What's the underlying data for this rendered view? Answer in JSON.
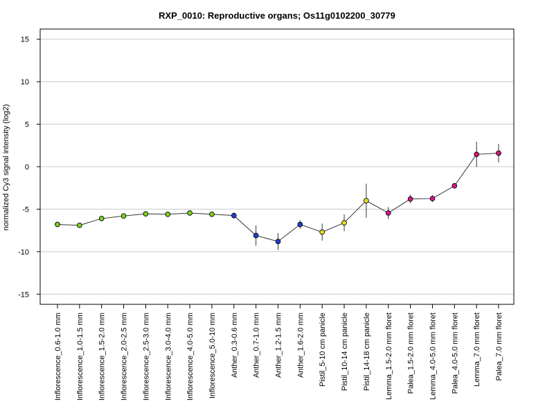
{
  "chart_data": {
    "type": "line",
    "title": "RXP_0010: Reproductive organs; Os11g0102200_30779",
    "ylabel": "normalized Cy3 signal intensity (log2)",
    "xlabel": "",
    "ylim": [
      -16.2,
      16.2
    ],
    "yticks": [
      -15,
      -10,
      -5,
      0,
      5,
      10,
      15
    ],
    "grid": true,
    "categories": [
      "Inflorescence_0.6-1.0 mm",
      "Inflorescence_1.0-1.5 mm",
      "Inflorescence_1.5-2.0 mm",
      "Inflorescence_2.0-2.5 mm",
      "Inflorescence_2.5-3.0 mm",
      "Inflorescence_3.0-4.0 mm",
      "Inflorescence_4.0-5.0 mm",
      "Inflorescence_5.0-10 mm",
      "Anther_0.3-0.6 mm",
      "Anther_0.7-1.0 mm",
      "Anther_1.2-1.5 mm",
      "Anther_1.6-2.0 mm",
      "Pistil_5-10 cm panicle",
      "Pistil_10-14 cm panicle",
      "Pistil_14-18 cm panicle",
      "Lemma_1.5-2.0 mm floret",
      "Palea_1.5-2.0 mm floret",
      "Lemma_4.0-5.0 mm floret",
      "Palea_4.0-5.0 mm floret",
      "Lemma_7.0 mm floret",
      "Palea_7.0 mm floret"
    ],
    "series": [
      {
        "values": [
          -6.8,
          -6.9,
          -6.1,
          -5.8,
          -5.55,
          -5.6,
          -5.45,
          -5.6,
          -5.75,
          -8.1,
          -8.8,
          -6.8,
          -7.7,
          -6.6,
          -4.0,
          -5.45,
          -3.8,
          -3.75,
          -2.25,
          1.45,
          1.6
        ],
        "errors": [
          0.1,
          0.1,
          0.15,
          0.1,
          0.1,
          0.1,
          0.1,
          0.1,
          0.35,
          1.2,
          1.0,
          0.5,
          1.0,
          1.0,
          2.0,
          0.7,
          0.5,
          0.4,
          0.2,
          1.5,
          1.1
        ]
      }
    ],
    "point_colors": [
      "#7fd320",
      "#7fd320",
      "#7fd320",
      "#7fd320",
      "#7fd320",
      "#7fd320",
      "#7fd320",
      "#7fd320",
      "#1f3fd6",
      "#1f3fd6",
      "#1f3fd6",
      "#1f3fd6",
      "#e2e22a",
      "#e2e22a",
      "#e2e22a",
      "#d61a8f",
      "#d61a8f",
      "#d61a8f",
      "#d61a8f",
      "#d61a6f",
      "#d61a6f"
    ]
  }
}
